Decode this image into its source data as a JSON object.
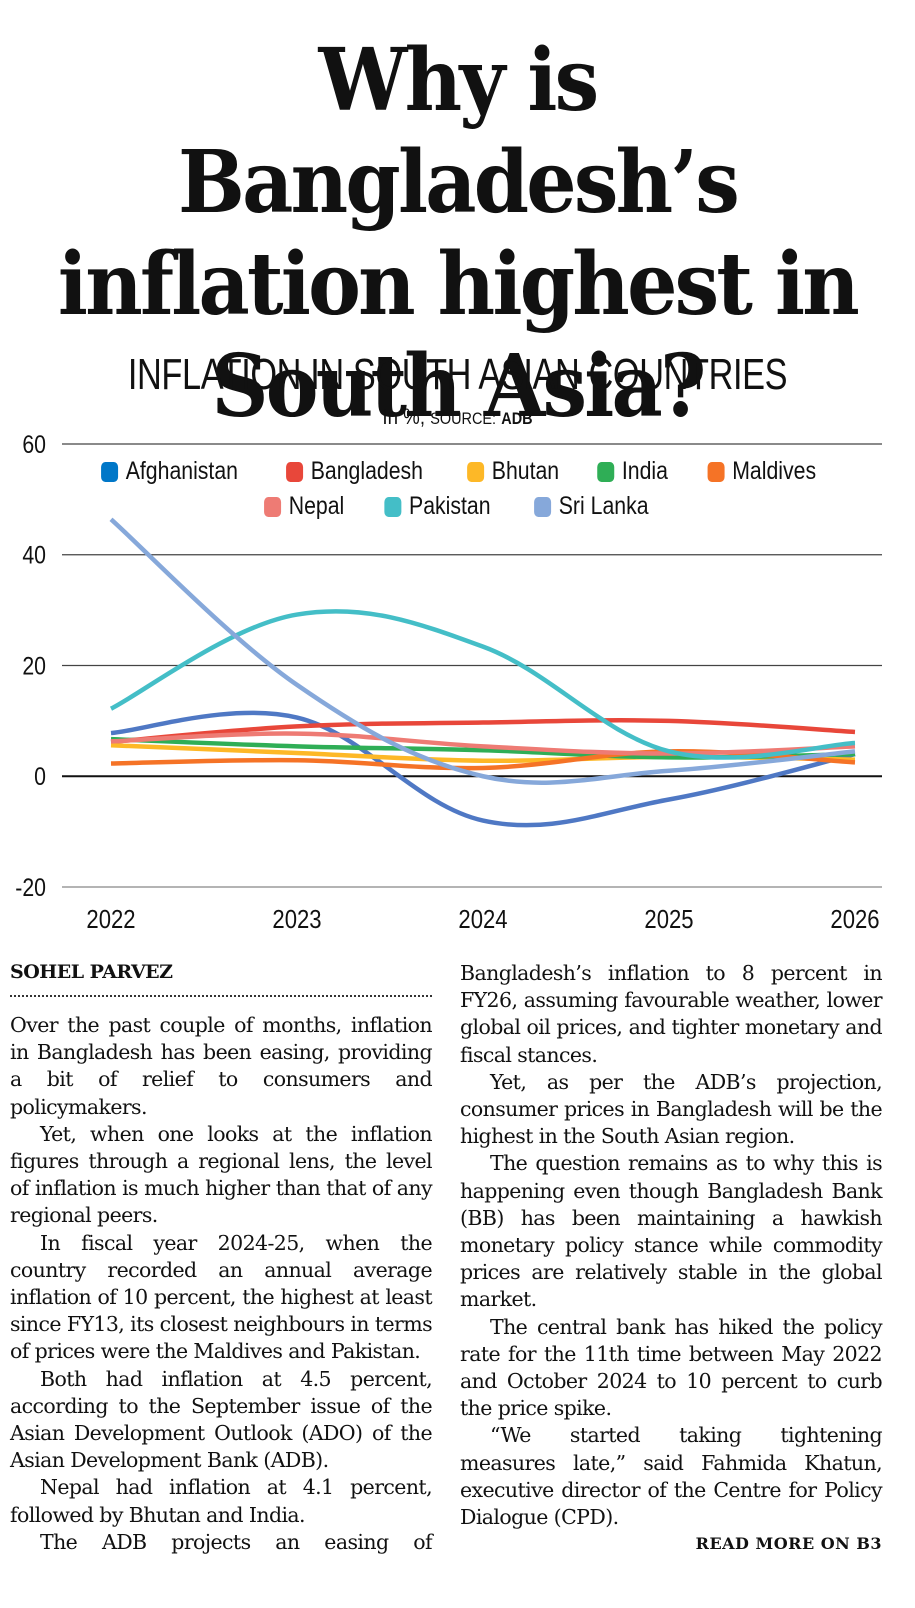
{
  "headline": {
    "lines": [
      "Why is Bangladesh’s",
      "inflation highest in",
      "South Asia?"
    ]
  },
  "chart_data": {
    "type": "line",
    "title": "INFLATION IN SOUTH ASIAN COUNTRIES",
    "subtitle_prefix": "In %;",
    "subtitle_source_label": "SOURCE:",
    "subtitle_source": "ADB",
    "xlabel": "",
    "ylabel": "",
    "x": [
      "2022",
      "2023",
      "2024",
      "2025",
      "2026"
    ],
    "ylim": [
      -20,
      60
    ],
    "yticks": [
      "60",
      "40",
      "20",
      "0",
      "-20"
    ],
    "ytick_values": [
      60,
      40,
      20,
      0,
      -20
    ],
    "grid": true,
    "legend_position": "top-center",
    "smooth": true,
    "series": [
      {
        "name": "Afghanistan",
        "color": "#0077c8",
        "line_color": "#4f78c4",
        "values": [
          7.8,
          10.6,
          -8.0,
          -4.2,
          4.0
        ]
      },
      {
        "name": "Bangladesh",
        "color": "#e8473a",
        "line_color": "#e8473a",
        "values": [
          6.2,
          9.0,
          9.7,
          10.0,
          8.0
        ]
      },
      {
        "name": "Bhutan",
        "color": "#fdb827",
        "line_color": "#fdb827",
        "values": [
          5.6,
          4.2,
          2.8,
          3.5,
          3.0
        ]
      },
      {
        "name": "India",
        "color": "#2fae56",
        "line_color": "#2fae56",
        "values": [
          6.7,
          5.4,
          4.7,
          3.4,
          4.0
        ]
      },
      {
        "name": "Maldives",
        "color": "#f57326",
        "line_color": "#f57326",
        "values": [
          2.3,
          2.9,
          1.5,
          4.5,
          2.5
        ]
      },
      {
        "name": "Nepal",
        "color": "#ee7b74",
        "line_color": "#ee7b74",
        "values": [
          6.3,
          7.7,
          5.4,
          4.1,
          5.4
        ]
      },
      {
        "name": "Pakistan",
        "color": "#44bec7",
        "line_color": "#44bec7",
        "values": [
          12.2,
          29.2,
          23.4,
          4.5,
          6.0
        ]
      },
      {
        "name": "Sri Lanka",
        "color": "#86a8da",
        "line_color": "#86a8da",
        "values": [
          46.4,
          16.5,
          0.0,
          1.0,
          4.5
        ]
      }
    ]
  },
  "article": {
    "byline": "SOHEL PARVEZ",
    "column1": [
      "Over the past couple of months, inflation in Bangladesh has been easing, providing a bit of relief to consumers and policymakers.",
      "Yet, when one looks at the inflation figures through a regional lens, the level of inflation is much higher than that of any regional peers.",
      "In fiscal year 2024-25, when the country recorded an annual average inflation of 10 percent, the highest at least since FY13, its closest neighbours in terms of prices were the Maldives and Pakistan.",
      "Both had inflation at 4.5 percent, according to the September issue of the Asian Development Outlook (ADO) of the Asian Development Bank (ADB).",
      "Nepal had inflation at 4.1 percent, followed by Bhutan and India.",
      "The ADB projects an easing of"
    ],
    "column2": [
      "Bangladesh’s inflation to 8 percent in FY26, assuming favourable weather, lower global oil prices, and tighter monetary and fiscal stances.",
      "Yet, as per the ADB’s projection, consumer prices in Bangladesh will be the highest in the South Asian region.",
      "The question remains as to why this is happening even though Bangladesh Bank (BB) has been maintaining a hawkish monetary policy stance while commodity prices are relatively stable in the global market.",
      "The central bank has hiked the policy rate for the 11th time between May 2022 and October 2024 to 10 percent to curb the price spike.",
      "“We started taking tightening measures late,” said Fahmida Khatun, executive director of the Centre for Policy Dialogue (CPD)."
    ],
    "read_more": "READ MORE ON B3"
  }
}
